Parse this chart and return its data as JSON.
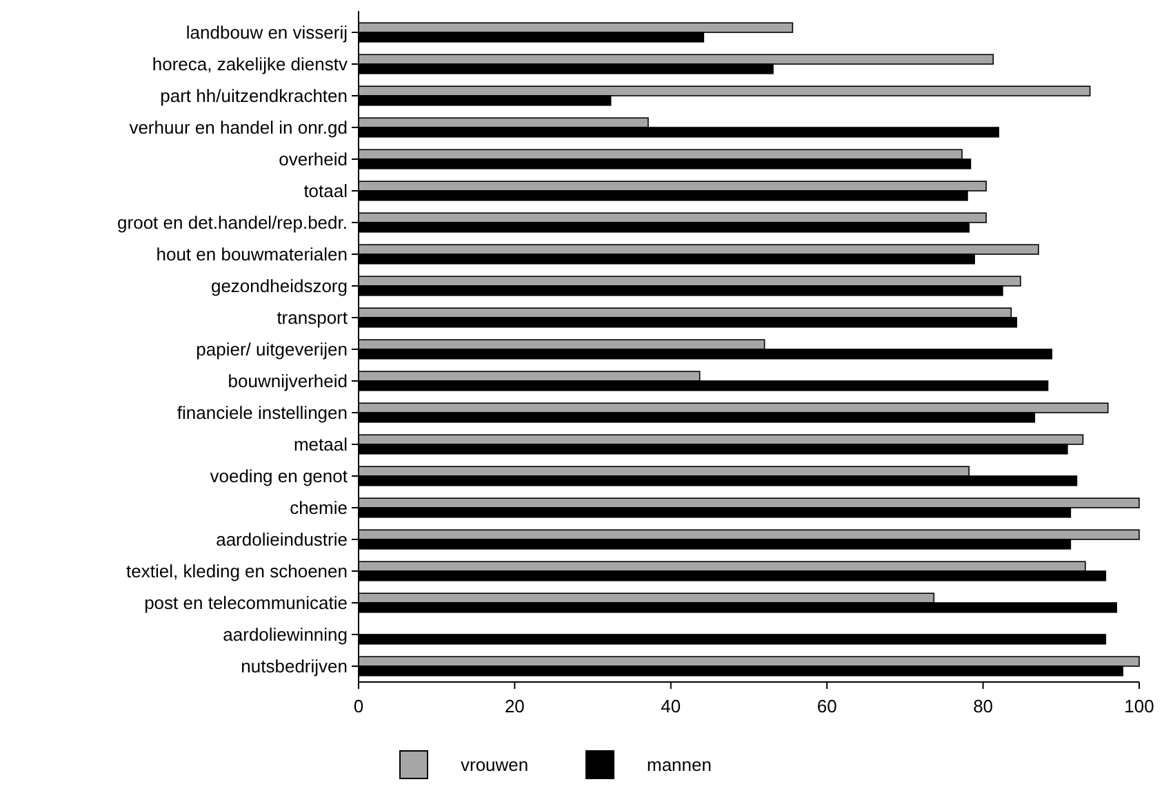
{
  "chart_data": {
    "type": "bar",
    "orientation": "horizontal",
    "categories": [
      "landbouw en visserij",
      "horeca, zakelijke dienstv",
      "part hh/uitzendkrachten",
      "verhuur en handel in onr.gd",
      "overheid",
      "totaal",
      "groot en det.handel/rep.bedr.",
      "hout en bouwmaterialen",
      "gezondheidszorg",
      "transport",
      "papier/ uitgeverijen",
      "bouwnijverheid",
      "financiele instellingen",
      "metaal",
      "voeding en genot",
      "chemie",
      "aardolieindustrie",
      "textiel, kleding en schoenen",
      "post en telecommunicatie",
      "aardoliewinning",
      "nutsbedrijven"
    ],
    "series": [
      {
        "name": "vrouwen",
        "color": "#a6a6a6",
        "values": [
          55.6,
          81.3,
          93.7,
          37.1,
          77.3,
          80.4,
          80.4,
          87.1,
          84.8,
          83.6,
          52.0,
          43.7,
          96.0,
          92.8,
          78.2,
          100,
          100,
          93.1,
          73.7,
          0,
          100
        ]
      },
      {
        "name": "mannen",
        "color": "#000000",
        "values": [
          44.2,
          53.1,
          32.3,
          82.0,
          78.4,
          78.0,
          78.2,
          78.9,
          82.5,
          84.3,
          88.8,
          88.3,
          86.6,
          90.8,
          92.0,
          91.2,
          91.2,
          95.7,
          97.1,
          95.7,
          97.9
        ]
      }
    ],
    "xlim": [
      0,
      100
    ],
    "xticks": [
      0,
      20,
      40,
      60,
      80,
      100
    ],
    "grid": false,
    "legend": "bottom"
  }
}
